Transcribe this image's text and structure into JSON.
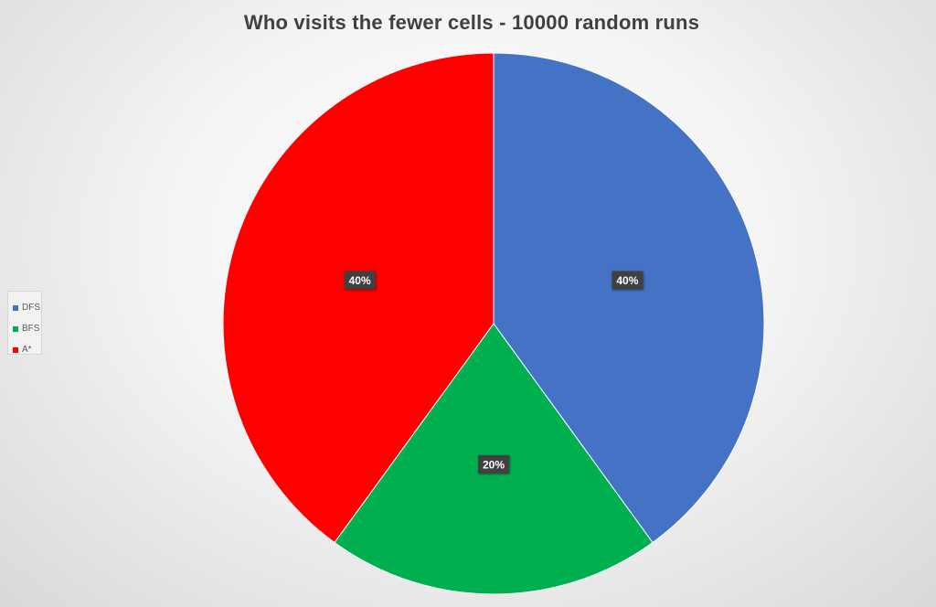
{
  "chart_data": {
    "type": "pie",
    "title": "Who visits the fewer cells - 10000 random runs",
    "series": [
      {
        "name": "DFS",
        "value": 40,
        "label": "40%",
        "color": "#4472C4"
      },
      {
        "name": "BFS",
        "value": 20,
        "label": "20%",
        "color": "#00B050"
      },
      {
        "name": "A*",
        "value": 40,
        "label": "40%",
        "color": "#FF0000"
      }
    ],
    "start_angle_deg": 0,
    "direction": "clockwise",
    "legend": "left",
    "data_labels": "inside"
  }
}
